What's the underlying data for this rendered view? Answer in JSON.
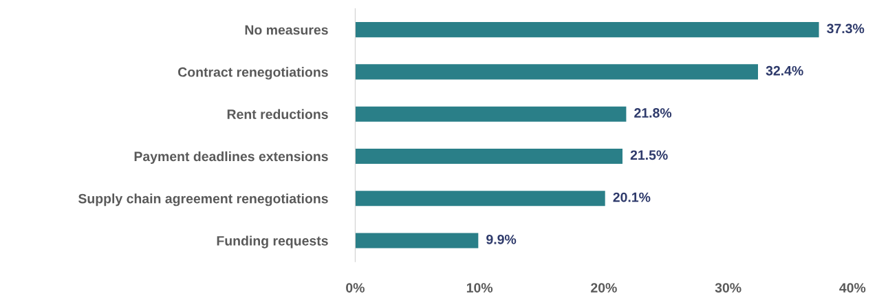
{
  "chart_data": {
    "type": "bar",
    "orientation": "horizontal",
    "categories": [
      "No measures",
      "Contract renegotiations",
      "Rent reductions",
      "Payment deadlines extensions",
      "Supply chain agreement renegotiations",
      "Funding requests"
    ],
    "values": [
      37.3,
      32.4,
      21.8,
      21.5,
      20.1,
      9.9
    ],
    "value_labels": [
      "37.3%",
      "32.4%",
      "21.8%",
      "21.5%",
      "20.1%",
      "9.9%"
    ],
    "color": "#2a7f88",
    "xlim": [
      0,
      40
    ],
    "xticks": [
      {
        "value": 0,
        "label": "0%"
      },
      {
        "value": 10,
        "label": "10%"
      },
      {
        "value": 20,
        "label": "20%"
      },
      {
        "value": 30,
        "label": "30%"
      },
      {
        "value": 40,
        "label": "40%"
      }
    ],
    "grid": false,
    "legend": false
  }
}
